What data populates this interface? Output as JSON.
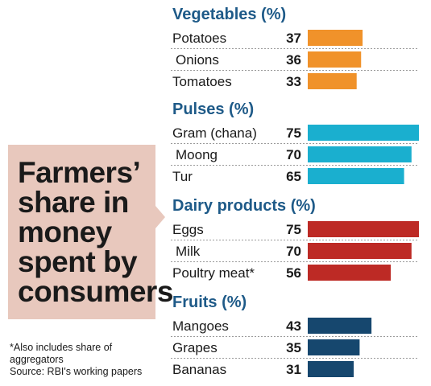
{
  "headline": [
    "Farmers’",
    "share in",
    "money",
    "spent by",
    "consumers"
  ],
  "note": [
    "*Also includes share of",
    "aggregators",
    "Source: RBI's working papers"
  ],
  "chart_data": {
    "type": "bar",
    "orientation": "horizontal",
    "xlim": [
      0,
      75
    ],
    "groups": [
      {
        "title": "Vegetables (%)",
        "color": "#f0922a",
        "categories": [
          "Potatoes",
          "Onions",
          "Tomatoes"
        ],
        "values": [
          37,
          36,
          33
        ]
      },
      {
        "title": "Pulses (%)",
        "color": "#1aafcf",
        "categories": [
          "Gram (chana)",
          "Moong",
          "Tur"
        ],
        "values": [
          75,
          70,
          65
        ]
      },
      {
        "title": "Dairy products (%)",
        "color": "#bd2a25",
        "categories": [
          "Eggs",
          "Milk",
          "Poultry meat*"
        ],
        "values": [
          75,
          70,
          56
        ]
      },
      {
        "title": "Fruits  (%)",
        "color": "#16476e",
        "categories": [
          "Mangoes",
          "Grapes",
          "Bananas"
        ],
        "values": [
          43,
          35,
          31
        ]
      }
    ]
  }
}
